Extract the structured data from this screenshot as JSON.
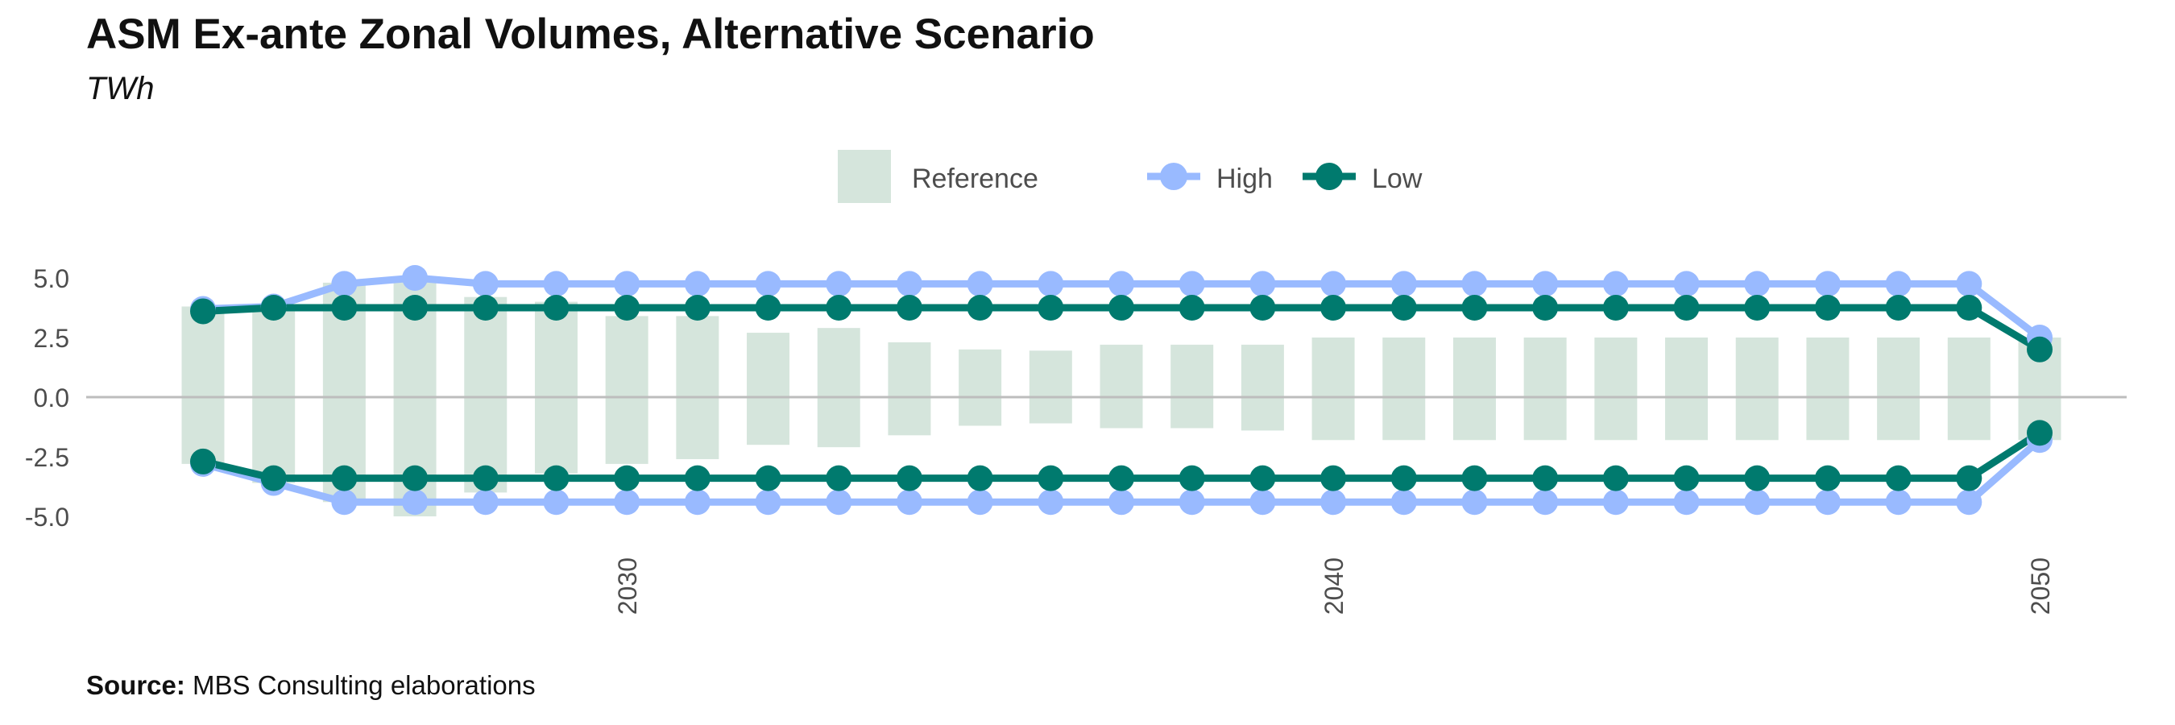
{
  "chart_data": {
    "type": "bar+line",
    "title": "ASM Ex-ante Zonal Volumes, Alternative Scenario",
    "subtitle": "TWh",
    "source_label": "Source:",
    "source_text": "MBS Consulting elaborations",
    "x": [
      2024,
      2025,
      2026,
      2027,
      2028,
      2029,
      2030,
      2031,
      2032,
      2033,
      2034,
      2035,
      2036,
      2037,
      2038,
      2039,
      2040,
      2041,
      2042,
      2043,
      2044,
      2045,
      2046,
      2047,
      2048,
      2049,
      2050
    ],
    "xticks": [
      2030,
      2040,
      2050
    ],
    "xtick_labels": [
      "2030",
      "2040",
      "2050"
    ],
    "ylim": [
      -5.2,
      5.2
    ],
    "yticks": [
      5.0,
      2.5,
      0.0,
      -2.5,
      -5.0
    ],
    "ytick_labels": [
      "5.0",
      "2.5",
      "0.0",
      "-2.5",
      "-5.0"
    ],
    "legend": {
      "placement": "top",
      "items": [
        {
          "label": "Reference",
          "kind": "bar"
        },
        {
          "label": "High",
          "kind": "line"
        },
        {
          "label": "Low",
          "kind": "line"
        }
      ]
    },
    "colors": {
      "reference": "#d5e5dc",
      "high": "#99baff",
      "low": "#007a6e",
      "zero_line": "#bdbdbd",
      "axis_text": "#4d4d4d"
    },
    "series": [
      {
        "name": "Reference",
        "type": "bar",
        "upper": [
          3.8,
          3.8,
          4.8,
          5.0,
          4.2,
          4.0,
          3.4,
          3.4,
          2.7,
          2.9,
          2.3,
          2.0,
          1.95,
          2.2,
          2.2,
          2.2,
          2.5,
          2.5,
          2.5,
          2.5,
          2.5,
          2.5,
          2.5,
          2.5,
          2.5,
          2.5,
          2.5
        ],
        "lower": [
          -2.8,
          -3.6,
          -4.4,
          -5.0,
          -4.0,
          -3.2,
          -2.8,
          -2.6,
          -2.0,
          -2.1,
          -1.6,
          -1.2,
          -1.1,
          -1.3,
          -1.3,
          -1.4,
          -1.8,
          -1.8,
          -1.8,
          -1.8,
          -1.8,
          -1.8,
          -1.8,
          -1.8,
          -1.8,
          -1.8,
          -1.8
        ]
      },
      {
        "name": "High",
        "type": "line",
        "upper": [
          3.7,
          3.8,
          4.75,
          5.0,
          4.75,
          4.75,
          4.75,
          4.75,
          4.75,
          4.75,
          4.75,
          4.75,
          4.75,
          4.75,
          4.75,
          4.75,
          4.75,
          4.75,
          4.75,
          4.75,
          4.75,
          4.75,
          4.75,
          4.75,
          4.75,
          4.75,
          2.5
        ],
        "lower": [
          -2.8,
          -3.6,
          -4.4,
          -4.4,
          -4.4,
          -4.4,
          -4.4,
          -4.4,
          -4.4,
          -4.4,
          -4.4,
          -4.4,
          -4.4,
          -4.4,
          -4.4,
          -4.4,
          -4.4,
          -4.4,
          -4.4,
          -4.4,
          -4.4,
          -4.4,
          -4.4,
          -4.4,
          -4.4,
          -4.4,
          -1.8
        ]
      },
      {
        "name": "Low",
        "type": "line",
        "upper": [
          3.6,
          3.75,
          3.75,
          3.75,
          3.75,
          3.75,
          3.75,
          3.75,
          3.75,
          3.75,
          3.75,
          3.75,
          3.75,
          3.75,
          3.75,
          3.75,
          3.75,
          3.75,
          3.75,
          3.75,
          3.75,
          3.75,
          3.75,
          3.75,
          3.75,
          3.75,
          2.0
        ],
        "lower": [
          -2.7,
          -3.4,
          -3.4,
          -3.4,
          -3.4,
          -3.4,
          -3.4,
          -3.4,
          -3.4,
          -3.4,
          -3.4,
          -3.4,
          -3.4,
          -3.4,
          -3.4,
          -3.4,
          -3.4,
          -3.4,
          -3.4,
          -3.4,
          -3.4,
          -3.4,
          -3.4,
          -3.4,
          -3.4,
          -3.4,
          -1.5
        ]
      }
    ]
  }
}
